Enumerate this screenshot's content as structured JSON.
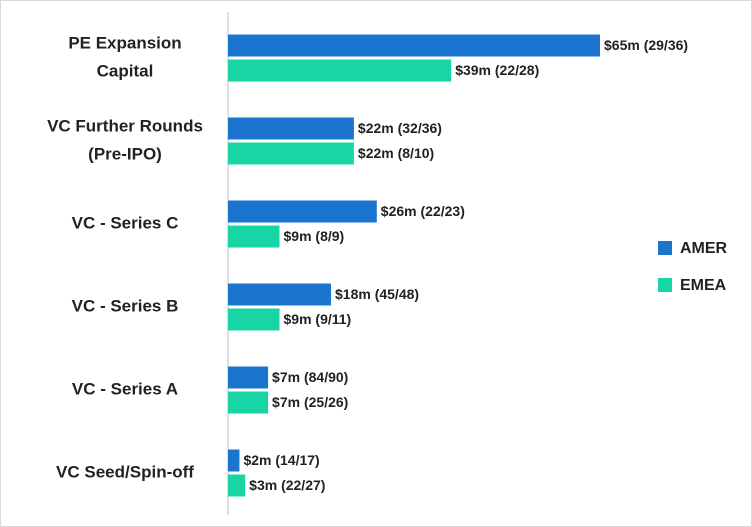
{
  "chart_data": {
    "type": "hbar",
    "categories": [
      [
        "PE Expansion",
        "Capital"
      ],
      [
        "VC Further Rounds",
        "(Pre-IPO)"
      ],
      [
        "VC - Series C"
      ],
      [
        "VC - Series B"
      ],
      [
        "VC - Series A"
      ],
      [
        "VC Seed/Spin-off"
      ]
    ],
    "series": [
      {
        "name": "AMER",
        "color": "#1b75cf",
        "values": [
          65,
          22,
          26,
          18,
          7,
          2
        ],
        "value_labels": [
          "$65m (29/36)",
          "$22m (32/36)",
          "$26m (22/23)",
          "$18m (45/48)",
          "$7m (84/90)",
          "$2m (14/17)"
        ]
      },
      {
        "name": "EMEA",
        "color": "#19d5a5",
        "values": [
          39,
          22,
          9,
          9,
          7,
          3
        ],
        "value_labels": [
          "$39m (22/28)",
          "$22m (8/10)",
          "$9m (8/9)",
          "$9m (9/11)",
          "$7m (25/26)",
          "$3m (22/27)"
        ]
      }
    ],
    "legend": "right"
  }
}
